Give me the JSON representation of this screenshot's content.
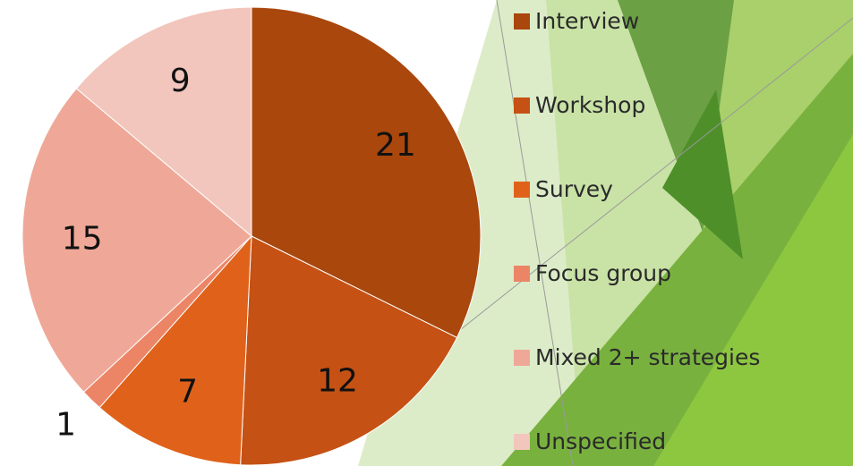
{
  "chart_data": {
    "type": "pie",
    "categories": [
      "Interview",
      "Workshop",
      "Survey",
      "Focus group",
      "Mixed 2+ strategies",
      "Unspecified"
    ],
    "values": [
      21,
      12,
      7,
      1,
      15,
      9
    ],
    "colors": [
      "#a9470d",
      "#c55114",
      "#e0621a",
      "#ec8566",
      "#efa898",
      "#f2c6bc"
    ],
    "legend": "right"
  }
}
